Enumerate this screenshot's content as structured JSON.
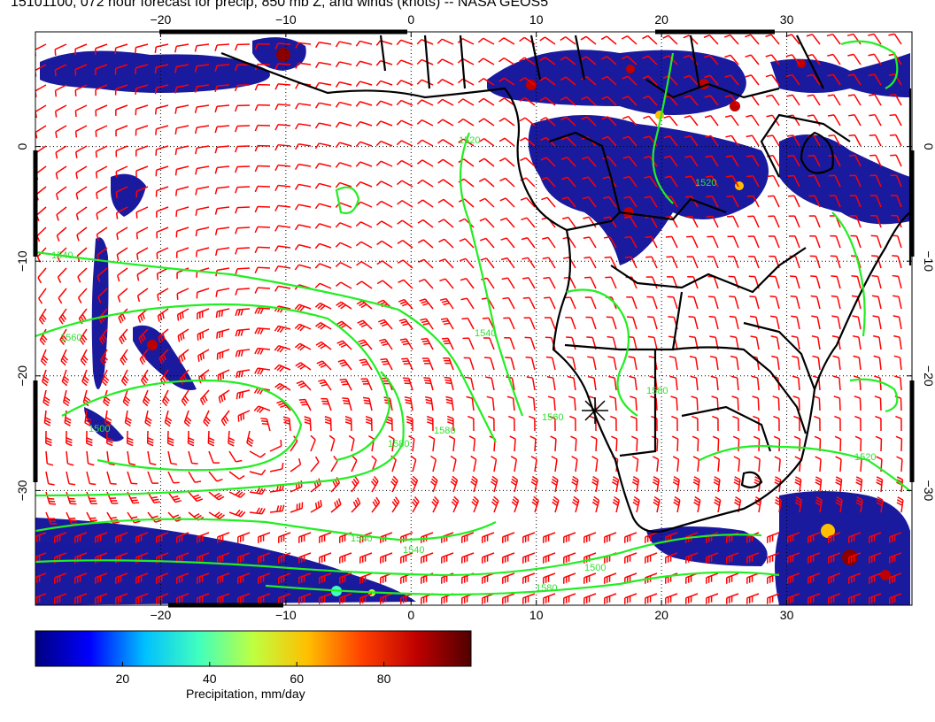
{
  "title": "15101100, 072 hour forecast for precip, 850 mb Z, and winds (knots) -- NASA GEOS5",
  "map": {
    "lon_range": [
      -30,
      40
    ],
    "lat_range": [
      -40,
      10
    ],
    "lon_ticks": [
      -20,
      -10,
      0,
      10,
      20,
      30
    ],
    "lat_ticks": [
      0,
      -10,
      -20,
      -30
    ],
    "lon_tick_labels": [
      "−20",
      "−10",
      "0",
      "10",
      "20",
      "30"
    ],
    "lat_tick_labels": [
      "0",
      "−10",
      "−20",
      "−30"
    ],
    "colors": {
      "contour": "#22ee22",
      "wind_barb": "#ff0000",
      "coastline": "#000000",
      "precip_low": "#1a1a9e",
      "precip_high": "#8b0000"
    },
    "contour_labels": [
      "1540",
      "1560",
      "1580",
      "1500",
      "1520",
      "1540",
      "1560",
      "1580",
      "1540",
      "1580",
      "1500",
      "1520",
      "1540",
      "1520",
      "1580"
    ],
    "marker_icon": "asterisk-marker"
  },
  "colorbar": {
    "title": "Precipitation, mm/day",
    "range": [
      0,
      100
    ],
    "tick_labels": [
      "20",
      "40",
      "60",
      "80"
    ],
    "ticks": [
      20,
      40,
      60,
      80
    ],
    "colors": [
      "#00007f",
      "#0000ff",
      "#00bfff",
      "#40ffbf",
      "#bfff40",
      "#ffbf00",
      "#ff4000",
      "#bf0000",
      "#500000"
    ]
  }
}
